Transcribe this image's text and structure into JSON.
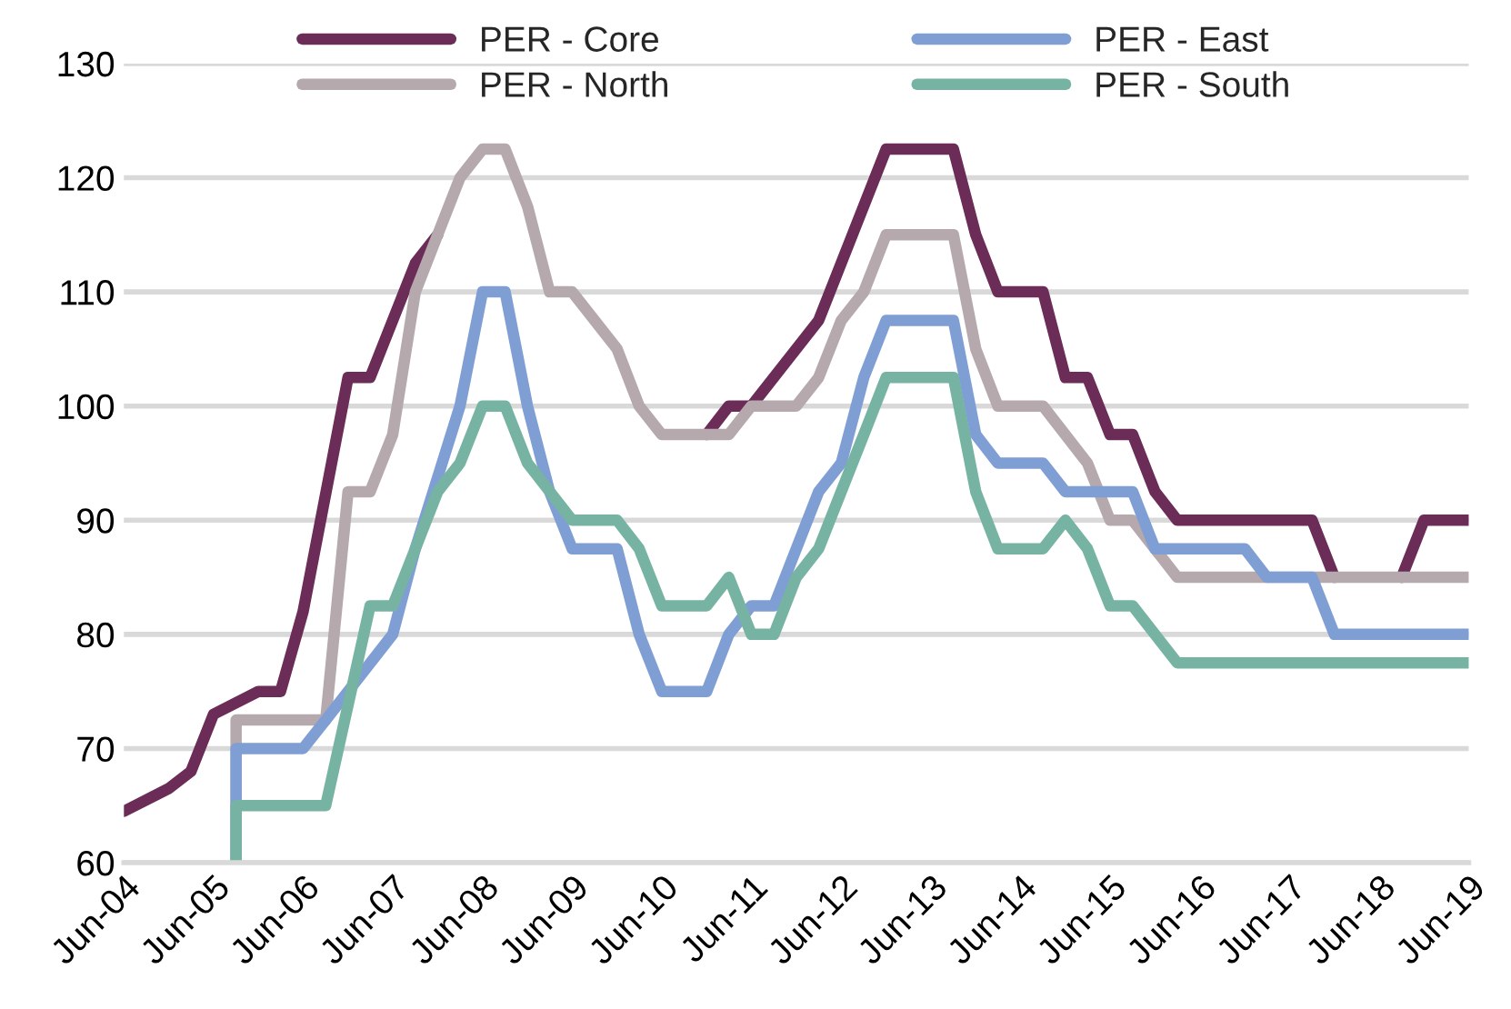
{
  "chart_data": {
    "type": "line",
    "ylim": [
      60,
      130
    ],
    "yticks": [
      60,
      70,
      80,
      90,
      100,
      110,
      120,
      130
    ],
    "xlim": [
      "2004-06",
      "2019-06"
    ],
    "xticks": [
      {
        "value": "2004-06",
        "label": "Jun-04"
      },
      {
        "value": "2005-06",
        "label": "Jun-05"
      },
      {
        "value": "2006-06",
        "label": "Jun-06"
      },
      {
        "value": "2007-06",
        "label": "Jun-07"
      },
      {
        "value": "2008-06",
        "label": "Jun-08"
      },
      {
        "value": "2009-06",
        "label": "Jun-09"
      },
      {
        "value": "2010-06",
        "label": "Jun-10"
      },
      {
        "value": "2011-06",
        "label": "Jun-11"
      },
      {
        "value": "2012-06",
        "label": "Jun-12"
      },
      {
        "value": "2013-06",
        "label": "Jun-13"
      },
      {
        "value": "2014-06",
        "label": "Jun-14"
      },
      {
        "value": "2015-06",
        "label": "Jun-15"
      },
      {
        "value": "2016-06",
        "label": "Jun-16"
      },
      {
        "value": "2017-06",
        "label": "Jun-17"
      },
      {
        "value": "2018-06",
        "label": "Jun-18"
      },
      {
        "value": "2019-06",
        "label": "Jun-19"
      }
    ],
    "grid": "y",
    "legend": "top",
    "marker": "none",
    "line_style": "solid",
    "series": [
      {
        "name": "PER - Core",
        "color": "#6b2d57",
        "x": [
          "2004-06",
          "2004-12",
          "2005-03",
          "2005-06",
          "2005-12",
          "2006-03",
          "2006-06",
          "2006-12",
          "2007-03",
          "2007-09",
          "2007-12",
          "2009-06",
          "2010-12",
          "2011-03",
          "2011-06",
          "2012-03",
          "2012-12",
          "2013-09",
          "2013-12",
          "2014-03",
          "2014-09",
          "2014-12",
          "2015-03",
          "2015-06",
          "2015-09",
          "2015-12",
          "2016-03",
          "2017-09",
          "2017-12",
          "2018-03",
          "2018-09",
          "2018-12",
          "2019-06"
        ],
        "values": [
          64.5,
          66.5,
          68,
          73,
          75,
          75,
          82,
          102.5,
          102.5,
          112.5,
          115,
          null,
          97.5,
          100,
          100,
          107.5,
          122.5,
          122.5,
          115,
          110,
          110,
          102.5,
          102.5,
          97.5,
          97.5,
          92.5,
          90,
          90,
          85,
          null,
          85,
          90,
          90
        ]
      },
      {
        "name": "PER - North",
        "color": "#b5a9ae",
        "x": [
          "2005-09",
          "2005-09",
          "2006-09",
          "2006-12",
          "2007-03",
          "2007-06",
          "2007-09",
          "2007-12",
          "2008-03",
          "2008-06",
          "2008-09",
          "2008-12",
          "2009-03",
          "2009-06",
          "2009-12",
          "2010-03",
          "2010-06",
          "2011-03",
          "2011-06",
          "2011-12",
          "2012-03",
          "2012-06",
          "2012-09",
          "2012-12",
          "2013-09",
          "2013-12",
          "2014-03",
          "2014-09",
          "2015-03",
          "2015-06",
          "2015-09",
          "2016-03",
          "2019-06"
        ],
        "values": [
          60,
          72.5,
          72.5,
          92.5,
          92.5,
          97.5,
          110,
          115,
          120,
          122.5,
          122.5,
          117.5,
          110,
          110,
          105,
          100,
          97.5,
          97.5,
          100,
          100,
          102.5,
          107.5,
          110,
          115,
          115,
          105,
          100,
          100,
          95,
          90,
          90,
          85,
          85
        ]
      },
      {
        "name": "PER - East",
        "color": "#7f9fd4",
        "x": [
          "2005-09",
          "2005-09",
          "2006-06",
          "2006-09",
          "2007-06",
          "2007-09",
          "2008-03",
          "2008-06",
          "2008-09",
          "2008-12",
          "2009-03",
          "2009-06",
          "2009-12",
          "2010-03",
          "2010-06",
          "2010-12",
          "2011-03",
          "2011-06",
          "2011-09",
          "2012-03",
          "2012-06",
          "2012-09",
          "2012-12",
          "2013-09",
          "2013-12",
          "2014-03",
          "2014-09",
          "2014-12",
          "2015-09",
          "2015-12",
          "2016-12",
          "2017-03",
          "2017-09",
          "2017-12",
          "2019-06"
        ],
        "values": [
          60,
          70,
          70,
          72.5,
          80,
          87.5,
          100,
          110,
          110,
          100,
          92.5,
          87.5,
          87.5,
          80,
          75,
          75,
          80,
          82.5,
          82.5,
          92.5,
          95,
          102.5,
          107.5,
          107.5,
          97.5,
          95,
          95,
          92.5,
          92.5,
          87.5,
          87.5,
          85,
          85,
          80,
          80
        ]
      },
      {
        "name": "PER - South",
        "color": "#76b3a3",
        "x": [
          "2005-09",
          "2005-09",
          "2006-09",
          "2007-03",
          "2007-06",
          "2007-09",
          "2007-12",
          "2008-03",
          "2008-06",
          "2008-09",
          "2008-12",
          "2009-06",
          "2009-12",
          "2010-03",
          "2010-06",
          "2010-12",
          "2011-03",
          "2011-06",
          "2011-09",
          "2011-12",
          "2012-03",
          "2012-06",
          "2012-09",
          "2012-12",
          "2013-09",
          "2013-12",
          "2014-03",
          "2014-09",
          "2014-12",
          "2015-03",
          "2015-06",
          "2015-09",
          "2016-03",
          "2019-06"
        ],
        "values": [
          60,
          65,
          65,
          82.5,
          82.5,
          87.5,
          92.5,
          95,
          100,
          100,
          95,
          90,
          90,
          87.5,
          82.5,
          82.5,
          85,
          80,
          80,
          85,
          87.5,
          92.5,
          97.5,
          102.5,
          102.5,
          92.5,
          87.5,
          87.5,
          90,
          87.5,
          82.5,
          82.5,
          77.5,
          77.5
        ]
      }
    ]
  }
}
